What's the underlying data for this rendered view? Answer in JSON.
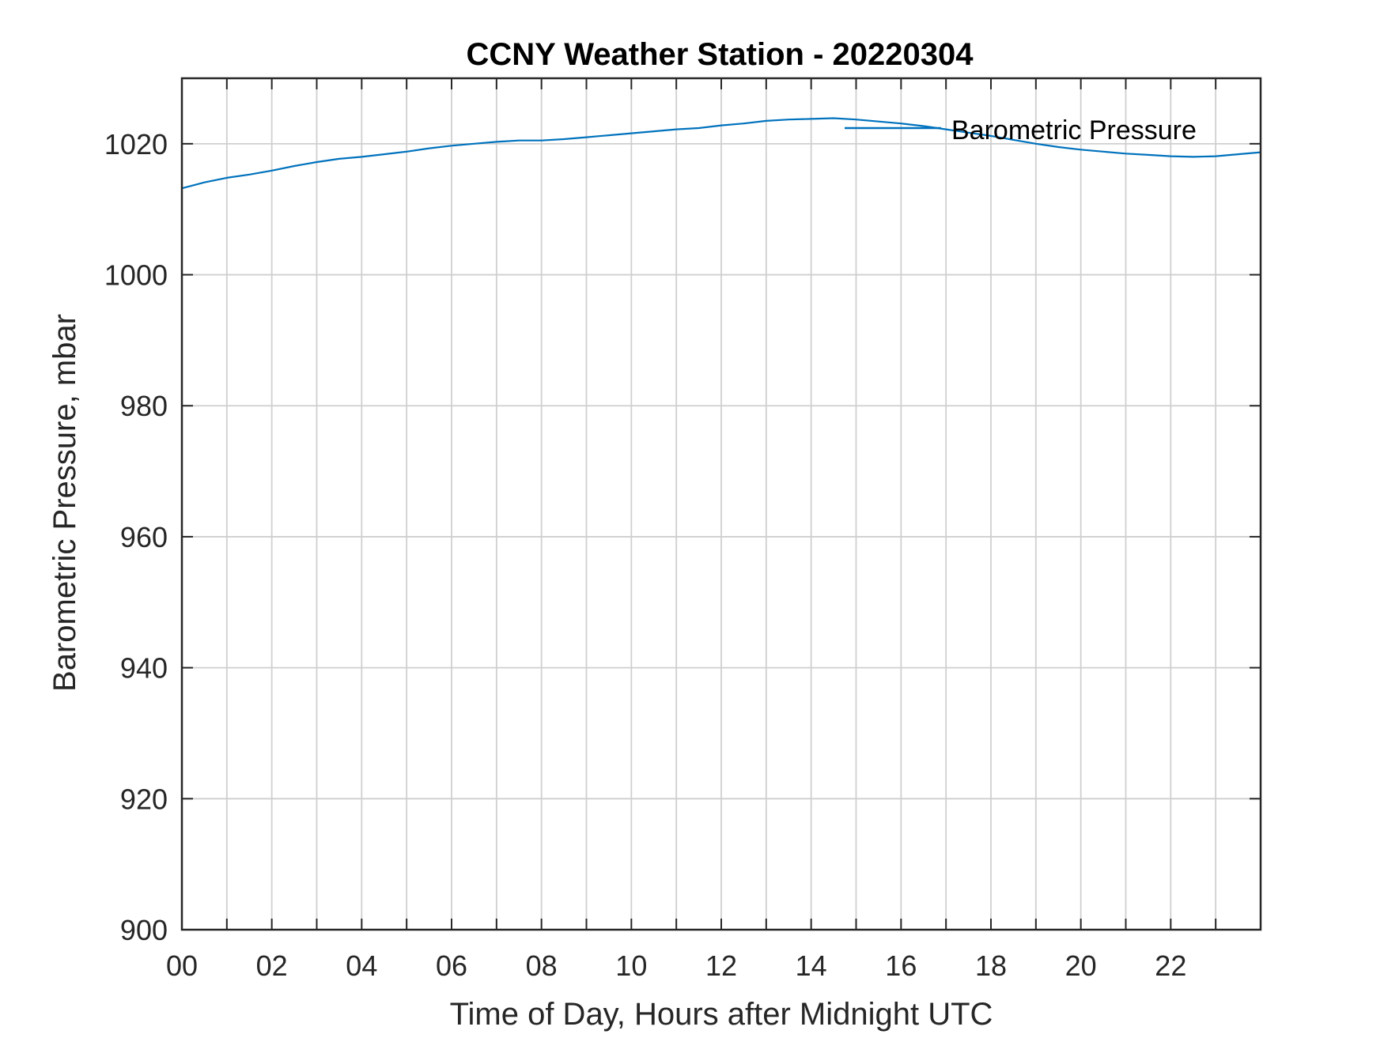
{
  "chart_data": {
    "type": "line",
    "title": "CCNY Weather Station - 20220304",
    "xlabel": "Time of Day, Hours after Midnight UTC",
    "ylabel": "Barometric Pressure, mbar",
    "xlim": [
      0,
      24
    ],
    "ylim": [
      900,
      1030
    ],
    "x_tick_values": [
      0,
      2,
      4,
      6,
      8,
      10,
      12,
      14,
      16,
      18,
      20,
      22
    ],
    "x_tick_labels": [
      "00",
      "02",
      "04",
      "06",
      "08",
      "10",
      "12",
      "14",
      "16",
      "18",
      "20",
      "22"
    ],
    "x_minor_ticks": [
      1,
      3,
      5,
      7,
      9,
      11,
      13,
      15,
      17,
      19,
      21,
      23
    ],
    "y_tick_values": [
      900,
      920,
      940,
      960,
      980,
      1000,
      1020
    ],
    "y_tick_labels": [
      "900",
      "920",
      "940",
      "960",
      "980",
      "1000",
      "1020"
    ],
    "grid": true,
    "legend": {
      "position": "top-right",
      "entries": [
        "Barometric Pressure"
      ]
    },
    "series": [
      {
        "name": "Barometric Pressure",
        "color": "#0072BD",
        "points": [
          [
            0.0,
            1013.2
          ],
          [
            0.5,
            1014.1
          ],
          [
            1.0,
            1014.8
          ],
          [
            1.5,
            1015.3
          ],
          [
            2.0,
            1015.9
          ],
          [
            2.5,
            1016.6
          ],
          [
            3.0,
            1017.2
          ],
          [
            3.5,
            1017.7
          ],
          [
            4.0,
            1018.0
          ],
          [
            4.5,
            1018.4
          ],
          [
            5.0,
            1018.8
          ],
          [
            5.5,
            1019.3
          ],
          [
            6.0,
            1019.7
          ],
          [
            6.5,
            1020.0
          ],
          [
            7.0,
            1020.3
          ],
          [
            7.5,
            1020.5
          ],
          [
            8.0,
            1020.5
          ],
          [
            8.5,
            1020.7
          ],
          [
            9.0,
            1021.0
          ],
          [
            9.5,
            1021.3
          ],
          [
            10.0,
            1021.6
          ],
          [
            10.5,
            1021.9
          ],
          [
            11.0,
            1022.2
          ],
          [
            11.5,
            1022.4
          ],
          [
            12.0,
            1022.8
          ],
          [
            12.5,
            1023.1
          ],
          [
            13.0,
            1023.5
          ],
          [
            13.5,
            1023.7
          ],
          [
            14.0,
            1023.8
          ],
          [
            14.5,
            1023.9
          ],
          [
            15.0,
            1023.7
          ],
          [
            15.5,
            1023.4
          ],
          [
            16.0,
            1023.1
          ],
          [
            16.5,
            1022.7
          ],
          [
            17.0,
            1022.2
          ],
          [
            17.5,
            1021.7
          ],
          [
            18.0,
            1021.2
          ],
          [
            18.5,
            1020.6
          ],
          [
            19.0,
            1020.0
          ],
          [
            19.5,
            1019.5
          ],
          [
            20.0,
            1019.1
          ],
          [
            20.5,
            1018.8
          ],
          [
            21.0,
            1018.5
          ],
          [
            21.5,
            1018.3
          ],
          [
            22.0,
            1018.1
          ],
          [
            22.5,
            1018.0
          ],
          [
            23.0,
            1018.1
          ],
          [
            23.5,
            1018.4
          ],
          [
            24.0,
            1018.7
          ]
        ]
      }
    ]
  }
}
